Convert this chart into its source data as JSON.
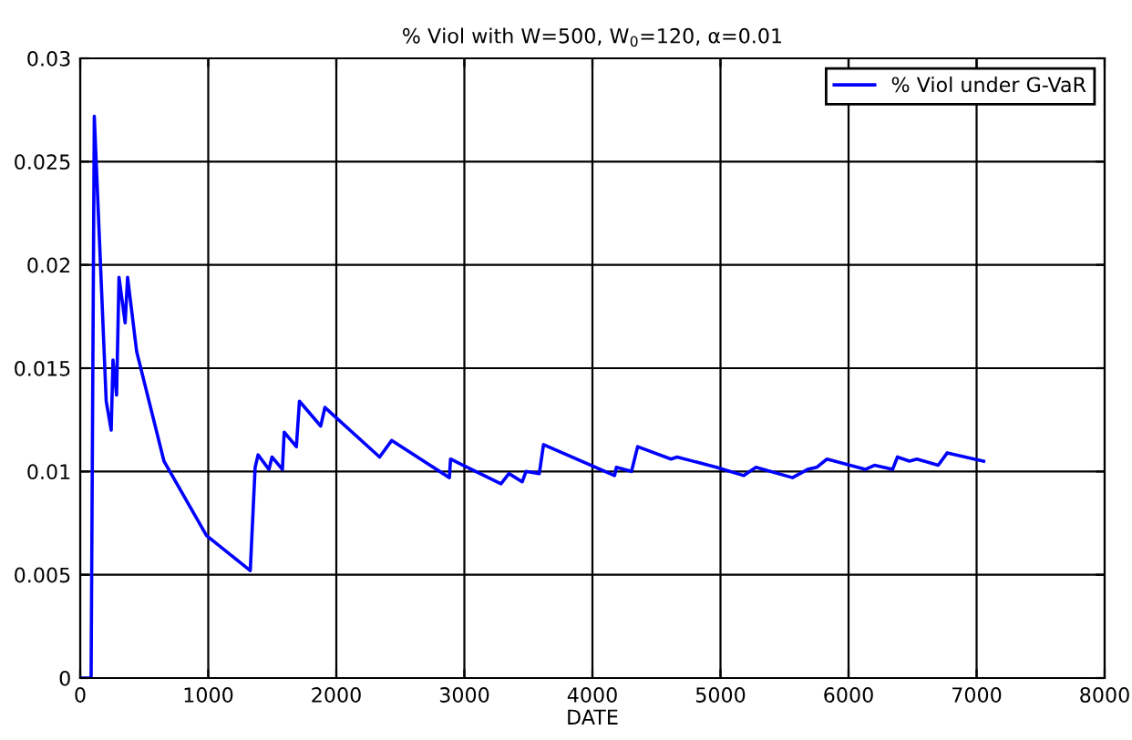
{
  "chart_data": {
    "type": "line",
    "title": "% Viol with W=500, W$_{0}$=120, α=0.01",
    "xlabel": "DATE",
    "xlim": [
      0,
      8000
    ],
    "xticks": [
      0,
      1000,
      2000,
      3000,
      4000,
      5000,
      6000,
      7000,
      8000
    ],
    "ylim": [
      0,
      0.03
    ],
    "yticks": [
      0,
      0.005,
      0.01,
      0.015,
      0.02,
      0.025,
      0.03
    ],
    "grid": true,
    "legend": "top right",
    "line_style": "solid",
    "marker": "none",
    "series": [
      {
        "name": "% Viol under G-VaR",
        "color": "#0000ff",
        "x": [
          0,
          85,
          110,
          203,
          242,
          256,
          284,
          303,
          351,
          370,
          441,
          654,
          986,
          1328,
          1366,
          1389,
          1474,
          1498,
          1579,
          1593,
          1688,
          1712,
          1878,
          1911,
          2338,
          2432,
          2883,
          2892,
          3286,
          3348,
          3452,
          3481,
          3585,
          3618,
          4173,
          4187,
          4305,
          4353,
          4614,
          4661,
          4969,
          5182,
          5277,
          5562,
          5680,
          5751,
          5832,
          6131,
          6202,
          6344,
          6382,
          6476,
          6533,
          6700,
          6771,
          7055
        ],
        "values": [
          0,
          0,
          0.0272,
          0.0134,
          0.012,
          0.0154,
          0.0137,
          0.0194,
          0.0172,
          0.0194,
          0.0158,
          0.0105,
          0.0069,
          0.0052,
          0.0102,
          0.0108,
          0.0101,
          0.0107,
          0.0101,
          0.0119,
          0.0112,
          0.0134,
          0.0122,
          0.0131,
          0.0107,
          0.0115,
          0.0097,
          0.0106,
          0.0094,
          0.0099,
          0.0095,
          0.01,
          0.0099,
          0.0113,
          0.0098,
          0.0102,
          0.01,
          0.0112,
          0.0106,
          0.0107,
          0.0102,
          0.0098,
          0.0102,
          0.0097,
          0.0101,
          0.0102,
          0.0106,
          0.0101,
          0.0103,
          0.0101,
          0.0107,
          0.0105,
          0.0106,
          0.0103,
          0.0109,
          0.0105
        ]
      }
    ]
  }
}
